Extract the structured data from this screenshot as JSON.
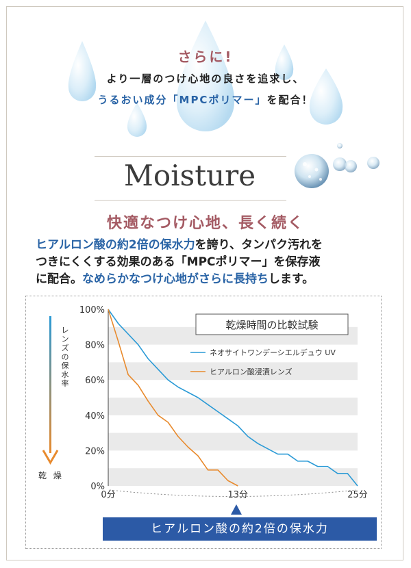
{
  "hero": {
    "headline": "さらに!",
    "line2": "より一層のつけ心地の良さを追求し、",
    "line3_blue": "うるおい成分「MPCポリマー」",
    "line3_rest": "を配合！"
  },
  "section_title": "Moisture",
  "subheading": "快適なつけ心地、長く続く",
  "body": {
    "p1_blue": "ヒアルロン酸の約2倍の保水力",
    "p1_rest": "を誇り、タンパク汚れを",
    "p2": "つきにくくする効果のある「MPCポリマー」を保存液",
    "p3_a": "に配合。",
    "p3_blue": "なめらかなつけ心地がさらに長持ち",
    "p3_rest": "します。"
  },
  "vertical_label": "レンズの保水率",
  "dry_label": "乾 燥",
  "banner": "ヒアルロン酸の約2倍の保水力",
  "chart_data": {
    "type": "line",
    "title": "乾燥時間の比較試験",
    "x_ticks": [
      "0分",
      "13分",
      "25分"
    ],
    "y_ticks": [
      "100%",
      "80%",
      "60%",
      "40%",
      "20%",
      "0%"
    ],
    "xlim": [
      0,
      25
    ],
    "ylim": [
      0,
      100
    ],
    "grid": "horizontal-bands",
    "legend_position": "top-right",
    "series": [
      {
        "name": "ネオサイトワンデーシエルデュウ UV",
        "color": "#2a9ad6",
        "x": [
          0,
          1,
          2,
          3,
          3.5,
          4,
          5,
          6,
          7,
          8,
          9,
          10,
          11,
          12,
          13,
          14,
          15,
          16,
          17,
          18,
          19,
          20,
          21,
          22,
          23,
          24,
          25
        ],
        "y": [
          100,
          92,
          86,
          80,
          76,
          72,
          66,
          60,
          56,
          53,
          50,
          46,
          42,
          38,
          34,
          28,
          24,
          21,
          18,
          18,
          14,
          14,
          11,
          11,
          7,
          7,
          0
        ]
      },
      {
        "name": "ヒアルロン酸浸漬レンズ",
        "color": "#e88a2d",
        "x": [
          0,
          1,
          2,
          3,
          4,
          5,
          6,
          7,
          8,
          9,
          10,
          11,
          12,
          13
        ],
        "y": [
          100,
          82,
          63,
          57,
          48,
          40,
          36,
          28,
          22,
          17,
          9,
          9,
          3,
          0
        ]
      }
    ]
  }
}
